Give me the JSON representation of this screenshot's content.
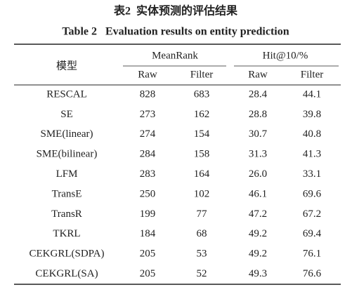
{
  "caption": {
    "title_cn": "表2  实体预测的评估结果",
    "title_en": "Table 2   Evaluation results on entity prediction"
  },
  "table": {
    "header": {
      "model": "模型",
      "groups": [
        "MeanRank",
        "Hit@10/%"
      ],
      "subheaders": [
        "Raw",
        "Filter",
        "Raw",
        "Filter"
      ]
    },
    "rows": [
      [
        "RESCAL",
        "828",
        "683",
        "28.4",
        "44.1"
      ],
      [
        "SE",
        "273",
        "162",
        "28.8",
        "39.8"
      ],
      [
        "SME(linear)",
        "274",
        "154",
        "30.7",
        "40.8"
      ],
      [
        "SME(bilinear)",
        "284",
        "158",
        "31.3",
        "41.3"
      ],
      [
        "LFM",
        "283",
        "164",
        "26.0",
        "33.1"
      ],
      [
        "TransE",
        "250",
        "102",
        "46.1",
        "69.6"
      ],
      [
        "TransR",
        "199",
        "77",
        "47.2",
        "67.2"
      ],
      [
        "TKRL",
        "184",
        "68",
        "49.2",
        "69.4"
      ],
      [
        "CEKGRL(SDPA)",
        "205",
        "53",
        "49.2",
        "76.1"
      ],
      [
        "CEKGRL(SA)",
        "205",
        "52",
        "49.3",
        "76.6"
      ]
    ]
  }
}
